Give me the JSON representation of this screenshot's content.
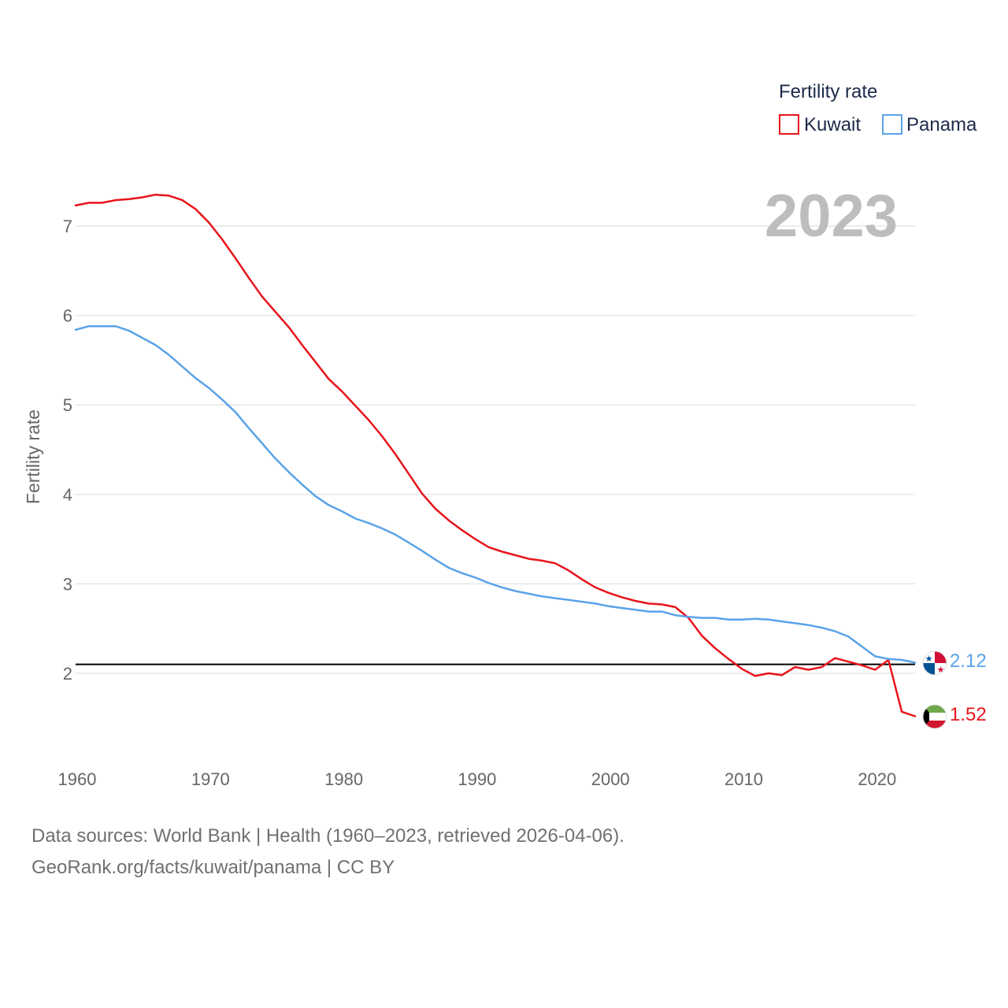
{
  "chart_data": {
    "type": "line",
    "title": "",
    "year_label": "2023",
    "ylabel": "Fertility rate",
    "xlabel": "",
    "xlim": [
      1960,
      2023
    ],
    "ylim": [
      1.1,
      7.6
    ],
    "x_ticks": [
      1960,
      1970,
      1980,
      1990,
      2000,
      2010,
      2020
    ],
    "y_ticks": [
      2,
      3,
      4,
      5,
      6,
      7
    ],
    "reference_line": 2.1,
    "legend": {
      "title": "Fertility rate",
      "position": "top-right"
    },
    "x": [
      1960,
      1961,
      1962,
      1963,
      1964,
      1965,
      1966,
      1967,
      1968,
      1969,
      1970,
      1971,
      1972,
      1973,
      1974,
      1975,
      1976,
      1977,
      1978,
      1979,
      1980,
      1981,
      1982,
      1983,
      1984,
      1985,
      1986,
      1987,
      1988,
      1989,
      1990,
      1991,
      1992,
      1993,
      1994,
      1995,
      1996,
      1997,
      1998,
      1999,
      2000,
      2001,
      2002,
      2003,
      2004,
      2005,
      2006,
      2007,
      2008,
      2009,
      2010,
      2011,
      2012,
      2013,
      2014,
      2015,
      2016,
      2017,
      2018,
      2019,
      2020,
      2021,
      2022,
      2023
    ],
    "series": [
      {
        "name": "Kuwait",
        "color": "#e8141c",
        "end_label": "1.52",
        "values": [
          7.23,
          7.26,
          7.26,
          7.29,
          7.3,
          7.32,
          7.35,
          7.34,
          7.29,
          7.19,
          7.04,
          6.85,
          6.64,
          6.42,
          6.21,
          6.04,
          5.87,
          5.67,
          5.48,
          5.29,
          5.15,
          4.99,
          4.83,
          4.65,
          4.45,
          4.23,
          4.01,
          3.84,
          3.71,
          3.6,
          3.5,
          3.41,
          3.36,
          3.32,
          3.28,
          3.26,
          3.23,
          3.15,
          3.05,
          2.96,
          2.9,
          2.85,
          2.81,
          2.78,
          2.77,
          2.74,
          2.62,
          2.42,
          2.28,
          2.16,
          2.05,
          1.97,
          2.0,
          1.98,
          2.07,
          2.04,
          2.07,
          2.17,
          2.13,
          2.09,
          2.04,
          2.15,
          1.57,
          1.52
        ]
      },
      {
        "name": "Panama",
        "color": "#5aa3e8",
        "end_label": "2.12",
        "values": [
          5.84,
          5.88,
          5.88,
          5.88,
          5.83,
          5.75,
          5.67,
          5.56,
          5.43,
          5.3,
          5.19,
          5.06,
          4.92,
          4.74,
          4.57,
          4.4,
          4.25,
          4.11,
          3.98,
          3.88,
          3.81,
          3.73,
          3.68,
          3.62,
          3.55,
          3.46,
          3.37,
          3.27,
          3.18,
          3.12,
          3.07,
          3.01,
          2.96,
          2.92,
          2.89,
          2.86,
          2.84,
          2.82,
          2.8,
          2.78,
          2.75,
          2.73,
          2.71,
          2.69,
          2.69,
          2.65,
          2.63,
          2.62,
          2.62,
          2.6,
          2.6,
          2.61,
          2.6,
          2.58,
          2.56,
          2.54,
          2.51,
          2.47,
          2.41,
          2.3,
          2.19,
          2.16,
          2.15,
          2.12
        ]
      }
    ]
  },
  "footer": {
    "sources": "Data sources: World Bank | Health (1960–2023, retrieved 2026-04-06).",
    "site": "GeoRank.org/facts/kuwait/panama | CC BY"
  }
}
